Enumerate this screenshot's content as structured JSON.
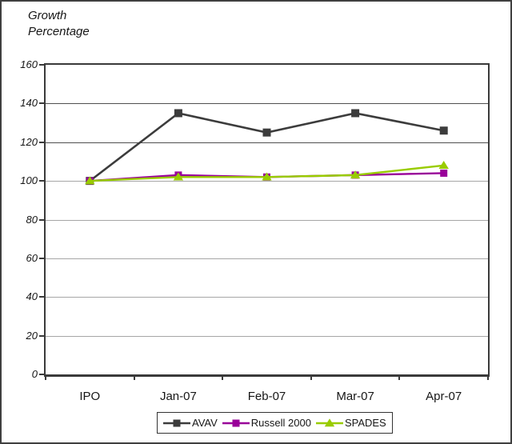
{
  "title": "Growth\nPercentage",
  "chart_data": {
    "type": "line",
    "title": "Growth Percentage",
    "xlabel": "",
    "ylabel": "Growth Percentage",
    "categories": [
      "IPO",
      "Jan-07",
      "Feb-07",
      "Mar-07",
      "Apr-07"
    ],
    "series": [
      {
        "name": "AVAV",
        "color": "#3c3c3c",
        "marker": "square",
        "values": [
          100,
          135,
          125,
          135,
          126
        ]
      },
      {
        "name": "Russell 2000",
        "color": "#990099",
        "marker": "square",
        "values": [
          100,
          103,
          102,
          103,
          104
        ]
      },
      {
        "name": "SPADES",
        "color": "#99cc00",
        "marker": "triangle",
        "values": [
          100,
          102,
          102,
          103,
          108
        ]
      }
    ],
    "ylim": [
      0,
      160
    ],
    "y_ticks": [
      160,
      140,
      120,
      100,
      80,
      60,
      40,
      20,
      0
    ],
    "grid": true,
    "legend_position": "bottom"
  }
}
